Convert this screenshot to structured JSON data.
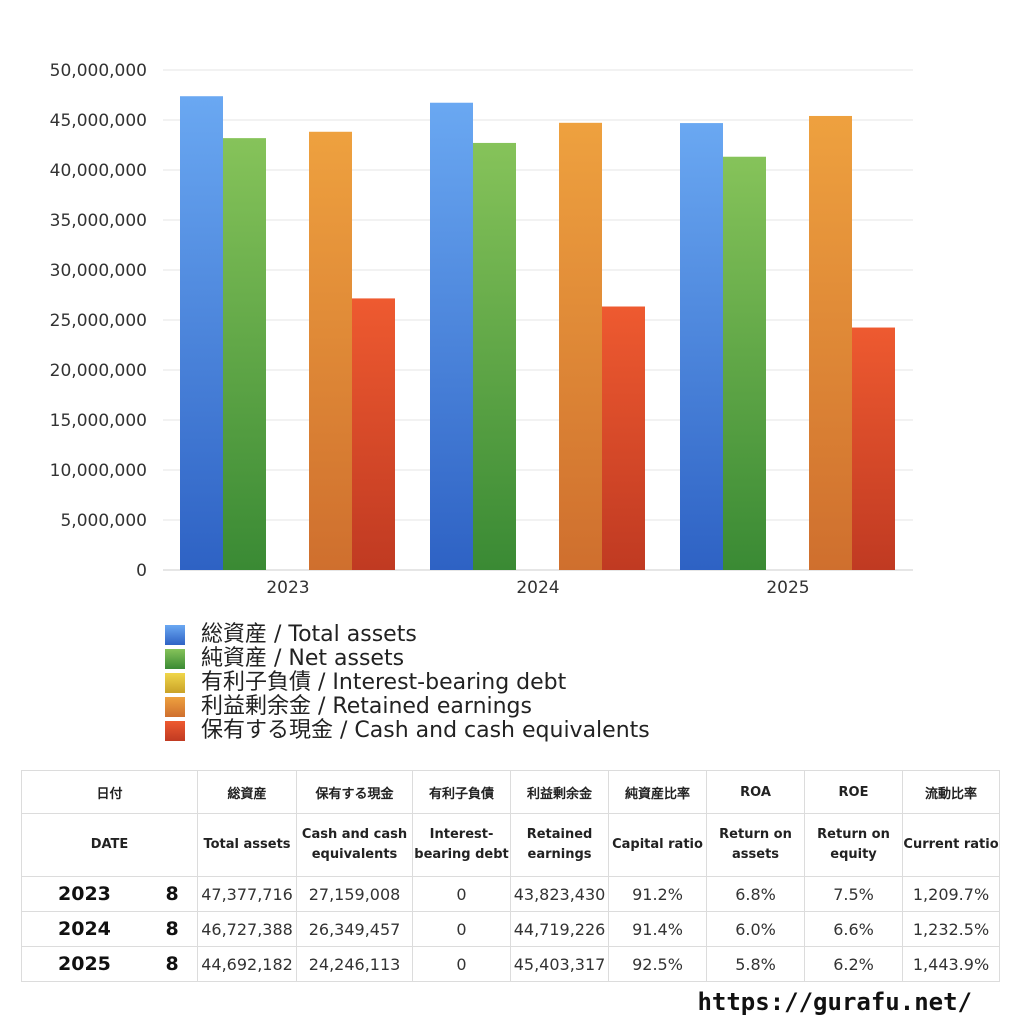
{
  "chart_data": {
    "type": "bar",
    "categories": [
      "2023",
      "2024",
      "2025"
    ],
    "ylim": [
      0,
      50000000
    ],
    "yticks": [
      0,
      5000000,
      10000000,
      15000000,
      20000000,
      25000000,
      30000000,
      35000000,
      40000000,
      45000000,
      50000000
    ],
    "ytick_labels": [
      "0",
      "5,000,000",
      "10,000,000",
      "15,000,000",
      "20,000,000",
      "25,000,000",
      "30,000,000",
      "35,000,000",
      "40,000,000",
      "45,000,000",
      "50,000,000"
    ],
    "grid": true,
    "legend_position": "bottom",
    "series": [
      {
        "name": "総資産 / Total assets",
        "values": [
          47377716,
          46727388,
          44692182
        ],
        "color_top": "#6aa8f2",
        "color_bottom": "#2e62c4"
      },
      {
        "name": "純資産 / Net assets",
        "values": [
          43187000,
          42707000,
          41327000
        ],
        "color_top": "#86c35a",
        "color_bottom": "#3a8a34"
      },
      {
        "name": "有利子負債 / Interest-bearing debt",
        "values": [
          0,
          0,
          0
        ],
        "color_top": "#f0d64a",
        "color_bottom": "#c9a228"
      },
      {
        "name": "利益剰余金 / Retained earnings",
        "values": [
          43823430,
          44719226,
          45403317
        ],
        "color_top": "#eea13f",
        "color_bottom": "#cf6f2e"
      },
      {
        "name": "保有する現金 /  Cash and cash equivalents",
        "values": [
          27159008,
          26349457,
          24246113
        ],
        "color_top": "#ee5a30",
        "color_bottom": "#c03a22"
      }
    ]
  },
  "table": {
    "header_jp": [
      "日付",
      "総資産",
      "保有する現金",
      "有利子負債",
      "利益剰余金",
      "純資産比率",
      "ROA",
      "ROE",
      "流動比率"
    ],
    "header_en": [
      "DATE",
      "Total assets",
      "Cash and cash equivalents",
      "Interest-bearing debt",
      "Retained earnings",
      "Capital ratio",
      "Return on assets",
      "Return on equity",
      "Current ratio"
    ],
    "rows": [
      {
        "year": "2023",
        "month": "8",
        "total_assets": "47,377,716",
        "cash": "27,159,008",
        "debt": "0",
        "retained": "43,823,430",
        "capital_ratio": "91.2%",
        "roa": "6.8%",
        "roe": "7.5%",
        "current_ratio": "1,209.7%"
      },
      {
        "year": "2024",
        "month": "8",
        "total_assets": "46,727,388",
        "cash": "26,349,457",
        "debt": "0",
        "retained": "44,719,226",
        "capital_ratio": "91.4%",
        "roa": "6.0%",
        "roe": "6.6%",
        "current_ratio": "1,232.5%"
      },
      {
        "year": "2025",
        "month": "8",
        "total_assets": "44,692,182",
        "cash": "24,246,113",
        "debt": "0",
        "retained": "45,403,317",
        "capital_ratio": "92.5%",
        "roa": "5.8%",
        "roe": "6.2%",
        "current_ratio": "1,443.9%"
      }
    ]
  },
  "site": "https://gurafu.net/"
}
